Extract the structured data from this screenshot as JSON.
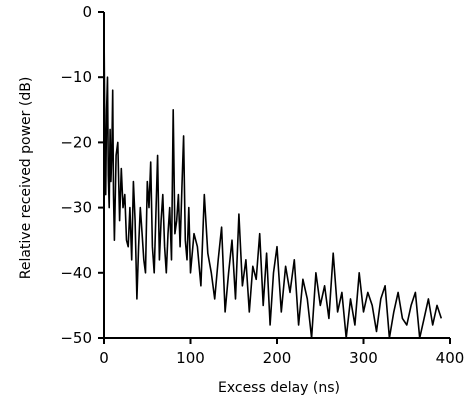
{
  "chart_data": {
    "type": "line",
    "title": "",
    "xlabel": "Excess delay (ns)",
    "ylabel": "Relative received power (dB)",
    "xlim": [
      0,
      400
    ],
    "ylim": [
      -50,
      0
    ],
    "xticks": [
      "0",
      "100",
      "200",
      "300",
      "400"
    ],
    "yticks": [
      "0",
      "−10",
      "−20",
      "−30",
      "−40",
      "−50"
    ],
    "grid": false,
    "legend": "none",
    "series": [
      {
        "x": [
          0,
          1,
          2,
          3,
          4,
          5,
          6,
          7,
          8,
          9,
          10,
          11,
          12,
          14,
          16,
          18,
          20,
          22,
          24,
          26,
          28,
          30,
          32,
          34,
          36,
          38,
          40,
          42,
          44,
          46,
          48,
          50,
          52,
          54,
          56,
          58,
          60,
          62,
          64,
          66,
          68,
          70,
          72,
          74,
          76,
          78,
          80,
          82,
          84,
          86,
          88,
          90,
          92,
          94,
          96,
          98,
          100,
          104,
          108,
          112,
          116,
          120,
          124,
          128,
          132,
          136,
          140,
          144,
          148,
          152,
          156,
          160,
          164,
          168,
          172,
          176,
          180,
          184,
          188,
          192,
          196,
          200,
          205,
          210,
          215,
          220,
          225,
          230,
          235,
          240,
          245,
          250,
          255,
          260,
          265,
          270,
          275,
          280,
          285,
          290,
          295,
          300,
          305,
          310,
          315,
          320,
          325,
          330,
          335,
          340,
          345,
          350,
          355,
          360,
          365,
          370,
          375,
          380,
          385,
          390
        ],
        "values": [
          -2,
          -20,
          -28,
          -15,
          -10,
          -25,
          -30,
          -18,
          -26,
          -22,
          -12,
          -28,
          -35,
          -22,
          -20,
          -32,
          -24,
          -30,
          -28,
          -35,
          -36,
          -30,
          -38,
          -26,
          -32,
          -44,
          -36,
          -30,
          -34,
          -38,
          -40,
          -26,
          -30,
          -23,
          -36,
          -40,
          -31,
          -22,
          -38,
          -32,
          -28,
          -36,
          -40,
          -34,
          -30,
          -38,
          -15,
          -34,
          -32,
          -28,
          -36,
          -27,
          -19,
          -35,
          -38,
          -30,
          -40,
          -34,
          -36,
          -42,
          -28,
          -37,
          -40,
          -44,
          -38,
          -33,
          -46,
          -40,
          -35,
          -44,
          -31,
          -42,
          -38,
          -46,
          -39,
          -41,
          -34,
          -45,
          -37,
          -48,
          -40,
          -36,
          -46,
          -39,
          -43,
          -38,
          -48,
          -41,
          -44,
          -50,
          -40,
          -45,
          -42,
          -47,
          -37,
          -46,
          -43,
          -50,
          -44,
          -48,
          -40,
          -46,
          -43,
          -45,
          -49,
          -44,
          -42,
          -50,
          -46,
          -43,
          -47,
          -48,
          -45,
          -43,
          -50,
          -47,
          -44,
          -48,
          -45,
          -47
        ]
      }
    ]
  }
}
